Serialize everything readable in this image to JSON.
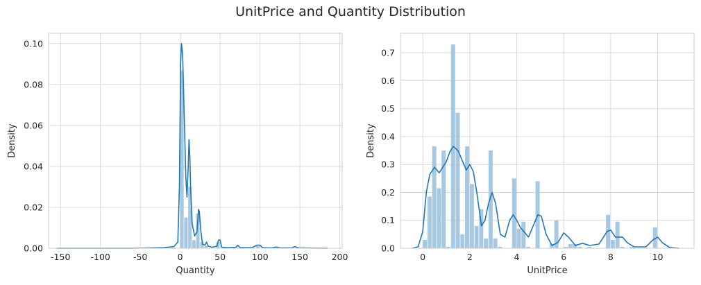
{
  "suptitle": "UnitPrice and Quantity Distribution",
  "chart_data": [
    {
      "type": "bar",
      "subtype": "histogram-with-kde",
      "xlabel": "Quantity",
      "ylabel": "Density",
      "xlim": [
        -165,
        203
      ],
      "ylim": [
        0,
        0.105
      ],
      "xticks": [
        -150,
        -100,
        -50,
        0,
        50,
        100,
        150,
        200
      ],
      "yticks": [
        0.0,
        0.02,
        0.04,
        0.06,
        0.08,
        0.1
      ],
      "ytick_labels": [
        "0.00",
        "0.02",
        "0.04",
        "0.06",
        "0.08",
        "0.10"
      ],
      "grid": true,
      "bar_color": "#a6c8e0",
      "line_color": "#1f77b4",
      "bars": [
        {
          "x0": 0,
          "x1": 5,
          "height": 0.087
        },
        {
          "x0": 5,
          "x1": 10,
          "height": 0.015
        },
        {
          "x0": 10,
          "x1": 15,
          "height": 0.03
        },
        {
          "x0": 15,
          "x1": 20,
          "height": 0.004
        },
        {
          "x0": 20,
          "x1": 25,
          "height": 0.017
        },
        {
          "x0": 25,
          "x1": 30,
          "height": 0.003
        },
        {
          "x0": 30,
          "x1": 35,
          "height": 0.001
        },
        {
          "x0": 45,
          "x1": 50,
          "height": 0.003
        },
        {
          "x0": 95,
          "x1": 100,
          "height": 0.001
        }
      ],
      "kde": [
        [
          -155,
          0
        ],
        [
          -60,
          0
        ],
        [
          -20,
          0.0003
        ],
        [
          -8,
          0.0008
        ],
        [
          -3,
          0.003
        ],
        [
          -1,
          0.03
        ],
        [
          0.5,
          0.09
        ],
        [
          1.5,
          0.1
        ],
        [
          3,
          0.095
        ],
        [
          5,
          0.065
        ],
        [
          7,
          0.035
        ],
        [
          8.5,
          0.025
        ],
        [
          10,
          0.04
        ],
        [
          11,
          0.053
        ],
        [
          12,
          0.045
        ],
        [
          13,
          0.03
        ],
        [
          15,
          0.012
        ],
        [
          18,
          0.006
        ],
        [
          21,
          0.008
        ],
        [
          23,
          0.019
        ],
        [
          24,
          0.018
        ],
        [
          26,
          0.008
        ],
        [
          28,
          0.002
        ],
        [
          31,
          0.0015
        ],
        [
          33,
          0.003
        ],
        [
          35,
          0.001
        ],
        [
          40,
          0.0005
        ],
        [
          46,
          0.001
        ],
        [
          48,
          0.004
        ],
        [
          50,
          0.004
        ],
        [
          52,
          0.0005
        ],
        [
          60,
          0.0003
        ],
        [
          70,
          0.0005
        ],
        [
          72,
          0.0015
        ],
        [
          75,
          0.0003
        ],
        [
          90,
          0.0003
        ],
        [
          96,
          0.0015
        ],
        [
          100,
          0.0015
        ],
        [
          103,
          0.0003
        ],
        [
          115,
          0.0002
        ],
        [
          120,
          0.0006
        ],
        [
          125,
          0.0002
        ],
        [
          140,
          0.0002
        ],
        [
          144,
          0.0008
        ],
        [
          148,
          0.0002
        ],
        [
          160,
          0.0001
        ],
        [
          185,
          0
        ]
      ]
    },
    {
      "type": "bar",
      "subtype": "histogram-with-kde",
      "xlabel": "UnitPrice",
      "ylabel": "Density",
      "xlim": [
        -0.95,
        11.55
      ],
      "ylim": [
        0,
        0.77
      ],
      "xticks": [
        0,
        2,
        4,
        6,
        8,
        10
      ],
      "yticks": [
        0.0,
        0.1,
        0.2,
        0.3,
        0.4,
        0.5,
        0.6,
        0.7
      ],
      "ytick_labels": [
        "0.0",
        "0.1",
        "0.2",
        "0.3",
        "0.4",
        "0.5",
        "0.6",
        "0.7"
      ],
      "grid": true,
      "bar_color": "#a6c8e0",
      "line_color": "#1f77b4",
      "bin_start": 0,
      "bin_width": 0.2,
      "bar_heights": [
        0.03,
        0.185,
        0.365,
        0.215,
        0.35,
        0.005,
        0.73,
        0.485,
        0.05,
        0.365,
        0.23,
        0.08,
        0.14,
        0.035,
        0.35,
        0.035,
        0.005,
        0.0,
        0.0,
        0.25,
        0.07,
        0.095,
        0.005,
        0.0,
        0.24,
        0.0,
        0.0,
        0.015,
        0.1,
        0.0,
        0.005,
        0.015,
        0.015,
        0.005,
        0.0,
        0.005,
        0.0,
        0.0,
        0.0,
        0.12,
        0.03,
        0.095,
        0.005,
        0.0,
        0.005,
        0.0,
        0.0,
        0.0,
        0.0,
        0.075
      ],
      "kde": [
        [
          -0.45,
          0
        ],
        [
          -0.2,
          0.005
        ],
        [
          0,
          0.06
        ],
        [
          0.15,
          0.2
        ],
        [
          0.3,
          0.265
        ],
        [
          0.5,
          0.29
        ],
        [
          0.7,
          0.27
        ],
        [
          0.85,
          0.29
        ],
        [
          1.0,
          0.31
        ],
        [
          1.15,
          0.345
        ],
        [
          1.3,
          0.365
        ],
        [
          1.5,
          0.35
        ],
        [
          1.7,
          0.31
        ],
        [
          1.85,
          0.28
        ],
        [
          2.0,
          0.3
        ],
        [
          2.15,
          0.275
        ],
        [
          2.3,
          0.2
        ],
        [
          2.5,
          0.08
        ],
        [
          2.65,
          0.1
        ],
        [
          2.8,
          0.16
        ],
        [
          2.95,
          0.2
        ],
        [
          3.1,
          0.16
        ],
        [
          3.3,
          0.05
        ],
        [
          3.5,
          0.04
        ],
        [
          3.7,
          0.1
        ],
        [
          3.85,
          0.12
        ],
        [
          4.0,
          0.1
        ],
        [
          4.15,
          0.075
        ],
        [
          4.3,
          0.06
        ],
        [
          4.5,
          0.04
        ],
        [
          4.7,
          0.08
        ],
        [
          4.9,
          0.12
        ],
        [
          5.05,
          0.115
        ],
        [
          5.25,
          0.05
        ],
        [
          5.5,
          0.01
        ],
        [
          5.75,
          0.02
        ],
        [
          6.0,
          0.055
        ],
        [
          6.2,
          0.04
        ],
        [
          6.5,
          0.01
        ],
        [
          6.8,
          0.018
        ],
        [
          7.1,
          0.01
        ],
        [
          7.5,
          0.015
        ],
        [
          7.85,
          0.06
        ],
        [
          8.0,
          0.065
        ],
        [
          8.2,
          0.04
        ],
        [
          8.5,
          0.04
        ],
        [
          8.7,
          0.02
        ],
        [
          9.0,
          0.005
        ],
        [
          9.5,
          0.005
        ],
        [
          9.8,
          0.03
        ],
        [
          10.0,
          0.04
        ],
        [
          10.2,
          0.02
        ],
        [
          10.5,
          0.003
        ],
        [
          10.9,
          0
        ]
      ]
    }
  ]
}
